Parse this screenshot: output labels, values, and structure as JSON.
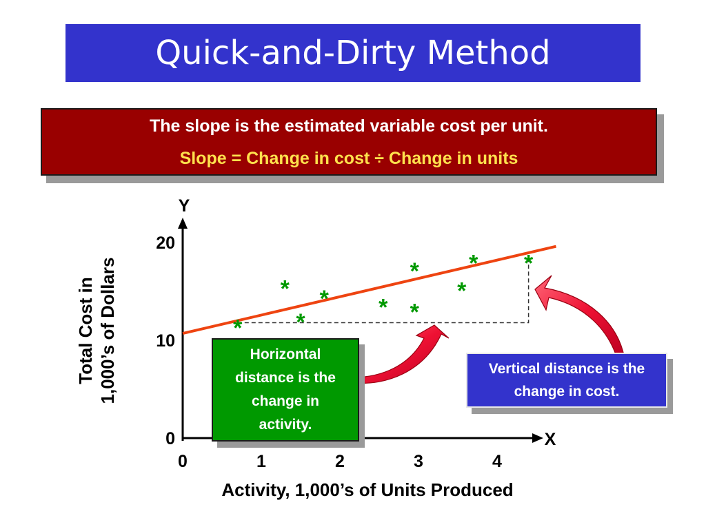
{
  "slide_title": "Quick-and-Dirty Method",
  "info": {
    "line1": "The slope is the estimated variable cost per unit.",
    "line2": "Slope = Change in cost ÷ Change in units"
  },
  "callouts": {
    "horizontal": "Horizontal distance is the change in activity.",
    "vertical": "Vertical distance is the change in cost."
  },
  "colors": {
    "title_bg": "#3333cc",
    "info_bg": "#990000",
    "info_highlight": "#ffe14d",
    "points": "#009900",
    "line": "#ee4411",
    "arrow": "#ee1133",
    "callout_h_bg": "#009900",
    "callout_v_bg": "#3333cc"
  },
  "chart_data": {
    "type": "scatter",
    "xlabel": "Activity, 1,000’s of Units Produced",
    "ylabel_lines": [
      "Total Cost in",
      "1,000’s of Dollars"
    ],
    "y_axis_letter": "Y",
    "x_axis_letter": "X",
    "point_marker": "*",
    "xlim": [
      0,
      4.6
    ],
    "ylim": [
      0,
      22
    ],
    "x_ticks": [
      "0",
      "1",
      "2",
      "3",
      "4"
    ],
    "y_ticks": [
      "0",
      "10",
      "20"
    ],
    "points": [
      {
        "x": 0.7,
        "y": 11.8
      },
      {
        "x": 1.3,
        "y": 15.8
      },
      {
        "x": 1.5,
        "y": 12.4
      },
      {
        "x": 1.8,
        "y": 14.8
      },
      {
        "x": 2.55,
        "y": 13.9
      },
      {
        "x": 2.95,
        "y": 17.6
      },
      {
        "x": 2.95,
        "y": 13.4
      },
      {
        "x": 3.55,
        "y": 15.6
      },
      {
        "x": 3.7,
        "y": 18.4
      },
      {
        "x": 4.4,
        "y": 18.4
      }
    ],
    "fit_line": {
      "x": [
        0,
        4.75
      ],
      "y": [
        10.7,
        19.6
      ]
    },
    "change_box": {
      "x1": 0.7,
      "x2": 4.4,
      "y1": 11.8,
      "y2": 18.4
    }
  }
}
